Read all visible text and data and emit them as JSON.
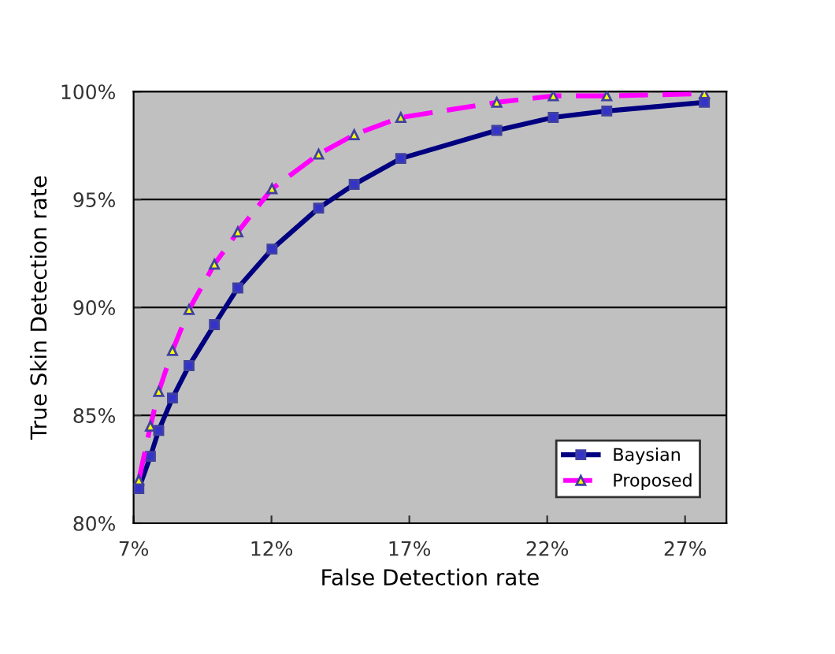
{
  "chart_data": {
    "type": "line",
    "xlabel": "False Detection rate",
    "ylabel": "True Skin Detection rate",
    "xlim": [
      7,
      28.5
    ],
    "ylim": [
      80,
      100
    ],
    "xticks": [
      {
        "value": 7,
        "label": "7%"
      },
      {
        "value": 12,
        "label": "12%"
      },
      {
        "value": 17,
        "label": "17%"
      },
      {
        "value": 22,
        "label": "22%"
      },
      {
        "value": 27,
        "label": "27%"
      }
    ],
    "yticks": [
      {
        "value": 80,
        "label": "80%"
      },
      {
        "value": 85,
        "label": "85%"
      },
      {
        "value": 90,
        "label": "90%"
      },
      {
        "value": 95,
        "label": "95%"
      },
      {
        "value": 100,
        "label": "100%"
      }
    ],
    "grid": "y",
    "legend": "bottom right",
    "series": [
      {
        "name": "Baysian",
        "color": "#000080",
        "marker": "square",
        "line_style": "solid",
        "x": [
          7.19,
          7.61,
          7.91,
          8.41,
          9.01,
          9.93,
          10.78,
          12.02,
          13.71,
          15.0,
          16.69,
          20.17,
          22.22,
          24.16,
          27.7
        ],
        "values": [
          81.6,
          83.1,
          84.3,
          85.8,
          87.3,
          89.2,
          90.9,
          92.7,
          94.6,
          95.7,
          96.9,
          98.2,
          98.8,
          99.1,
          99.5
        ]
      },
      {
        "name": "Proposed",
        "color": "#ff00ff",
        "marker": "triangle",
        "line_style": "dashed",
        "x": [
          7.19,
          7.61,
          7.91,
          8.41,
          9.01,
          9.93,
          10.78,
          12.02,
          13.71,
          15.0,
          16.69,
          20.17,
          22.22,
          24.16,
          27.7
        ],
        "values": [
          82.0,
          84.5,
          86.1,
          88.0,
          89.9,
          92.0,
          93.5,
          95.5,
          97.1,
          98.0,
          98.8,
          99.5,
          99.8,
          99.8,
          99.9
        ]
      }
    ]
  }
}
